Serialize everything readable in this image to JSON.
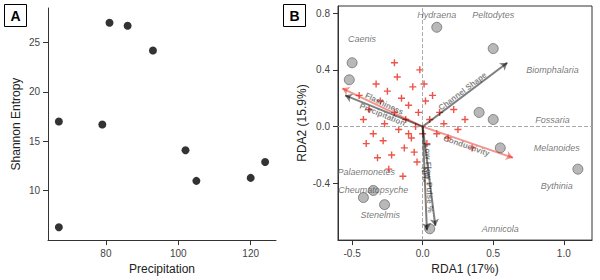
{
  "chart_data": [
    {
      "type": "scatter",
      "panel_label": "A",
      "xlabel": "Precipitation",
      "ylabel": "Shannon Entropy",
      "x": [
        67,
        67,
        79,
        81,
        86,
        93,
        102,
        105,
        120,
        124
      ],
      "values": [
        6.3,
        17,
        16.7,
        27,
        26.7,
        24.2,
        14.1,
        11,
        11.3,
        12.9
      ],
      "color": "#000000",
      "marker": "circle",
      "xlim": [
        64,
        127
      ],
      "ylim": [
        5,
        28.5
      ],
      "xticks": [
        80,
        100,
        120
      ],
      "yticks": [
        10,
        15,
        20,
        25
      ],
      "grid": false
    },
    {
      "type": "biplot",
      "panel_label": "B",
      "xlabel": "RDA1 (17%)",
      "ylabel": "RDA2 (15.9%)",
      "xlim": [
        -0.6,
        1.2
      ],
      "ylim": [
        -0.8,
        0.85
      ],
      "xticks": [
        -0.5,
        {
          "value": 0,
          "label": "0.0"
        },
        0.5,
        {
          "value": 1,
          "label": "1.0"
        }
      ],
      "yticks": [
        -0.4,
        {
          "value": 0,
          "label": "0.0"
        },
        0.4,
        0.8
      ],
      "grid": false,
      "reference_lines": {
        "x": 0,
        "y": 0
      },
      "sites": {
        "color": "#a6a6a6",
        "marker": "circle",
        "points": [
          [
            0.1,
            0.7
          ],
          [
            0.5,
            0.55
          ],
          [
            -0.5,
            0.45
          ],
          [
            -0.52,
            0.33
          ],
          [
            0.5,
            0.05
          ],
          [
            0.4,
            0.1
          ],
          [
            0.55,
            -0.15
          ],
          [
            1.1,
            -0.3
          ],
          [
            -0.35,
            -0.45
          ],
          [
            -0.42,
            -0.5
          ],
          [
            -0.27,
            -0.55
          ],
          [
            0.05,
            -0.72
          ]
        ]
      },
      "species_points": {
        "color": "#e8291c",
        "marker": "plus",
        "points": [
          [
            -0.45,
            0.22
          ],
          [
            -0.42,
            0.05
          ],
          [
            -0.38,
            0.12
          ],
          [
            -0.35,
            -0.05
          ],
          [
            -0.33,
            0.3
          ],
          [
            -0.3,
            0.18
          ],
          [
            -0.28,
            -0.1
          ],
          [
            -0.27,
            0.02
          ],
          [
            -0.25,
            0.25
          ],
          [
            -0.22,
            -0.2
          ],
          [
            -0.2,
            0.1
          ],
          [
            -0.18,
            0.35
          ],
          [
            -0.17,
            -0.02
          ],
          [
            -0.15,
            0.2
          ],
          [
            -0.13,
            -0.15
          ],
          [
            -0.12,
            0.05
          ],
          [
            -0.1,
            0.15
          ],
          [
            -0.08,
            -0.08
          ],
          [
            -0.07,
            0.28
          ],
          [
            -0.05,
            0.0
          ],
          [
            -0.04,
            -0.25
          ],
          [
            -0.03,
            0.1
          ],
          [
            -0.02,
            0.4
          ],
          [
            0.0,
            -0.05
          ],
          [
            0.02,
            0.18
          ],
          [
            0.03,
            -0.12
          ],
          [
            0.05,
            0.05
          ],
          [
            0.07,
            0.22
          ],
          [
            0.1,
            -0.05
          ],
          [
            0.12,
            0.1
          ],
          [
            0.15,
            0.02
          ],
          [
            0.18,
            -0.08
          ],
          [
            0.22,
            0.12
          ],
          [
            0.25,
            -0.02
          ],
          [
            0.3,
            0.05
          ],
          [
            0.35,
            -0.15
          ],
          [
            -0.4,
            -0.12
          ],
          [
            -0.32,
            -0.22
          ],
          [
            -0.24,
            -0.3
          ],
          [
            -0.14,
            -0.35
          ],
          [
            -0.06,
            -0.18
          ],
          [
            0.01,
            0.3
          ],
          [
            -0.2,
            0.45
          ],
          [
            -0.1,
            -0.05
          ]
        ]
      },
      "species_labels": [
        {
          "label": "Caenis",
          "x": -0.43,
          "y": 0.62
        },
        {
          "label": "Hydraena",
          "x": 0.1,
          "y": 0.79
        },
        {
          "label": "Peltodytes",
          "x": 0.5,
          "y": 0.79
        },
        {
          "label": "Biomphalaria",
          "x": 0.92,
          "y": 0.4
        },
        {
          "label": "Fossaria",
          "x": 0.92,
          "y": 0.05
        },
        {
          "label": "Melanoides",
          "x": 0.95,
          "y": -0.15
        },
        {
          "label": "Bythinia",
          "x": 0.95,
          "y": -0.42
        },
        {
          "label": "Amnicola",
          "x": 0.55,
          "y": -0.72
        },
        {
          "label": "Stenelmis",
          "x": -0.3,
          "y": -0.62
        },
        {
          "label": "Cheumatopsyche",
          "x": -0.35,
          "y": -0.45
        },
        {
          "label": "Palaemonetes",
          "x": -0.4,
          "y": -0.32
        }
      ],
      "arrows": [
        {
          "label": "Flashiness",
          "x": -0.57,
          "y": 0.27,
          "color": "#e8291c"
        },
        {
          "label": "Precipitation",
          "x": -0.55,
          "y": 0.22,
          "color": "#000000"
        },
        {
          "label": "Channel Shape",
          "x": 0.6,
          "y": 0.45,
          "color": "#000000"
        },
        {
          "label": "Conductivity",
          "x": 0.64,
          "y": -0.22,
          "color": "#e8291c"
        },
        {
          "label": "Low Flow Pulse %",
          "x": 0.03,
          "y": -0.73,
          "color": "#000000"
        },
        {
          "label": "NH₄⁺",
          "x": 0.09,
          "y": -0.7,
          "color": "#000000"
        }
      ]
    }
  ]
}
